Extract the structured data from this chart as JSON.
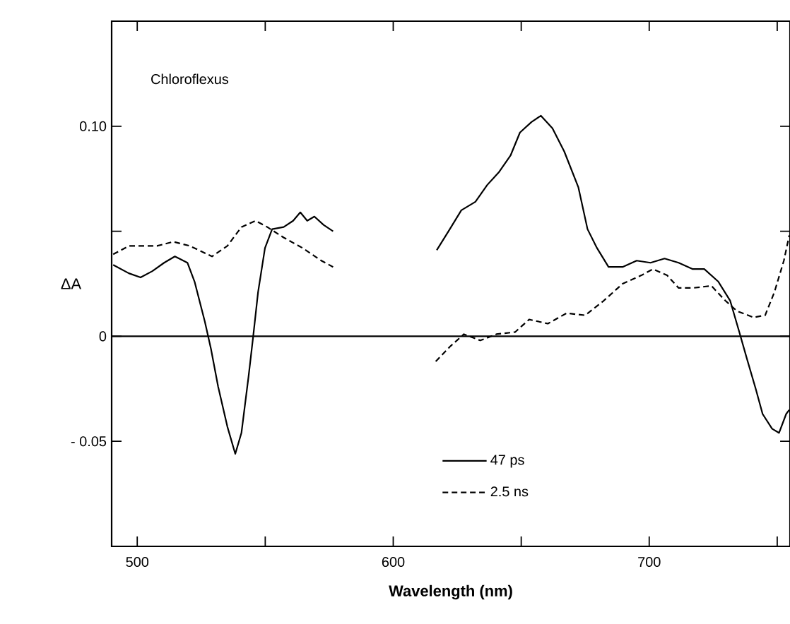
{
  "chart_data": {
    "type": "line",
    "xlabel": "Wavelength  (nm)",
    "ylabel": "ΔA",
    "annotations": [
      "Chloroflexus"
    ],
    "xlim": [
      490,
      755
    ],
    "ylim": [
      -0.1,
      0.15
    ],
    "xticks": [
      {
        "value": 500,
        "label": "500"
      },
      {
        "value": 550,
        "label": null
      },
      {
        "value": 600,
        "label": "600"
      },
      {
        "value": 650,
        "label": null
      },
      {
        "value": 700,
        "label": "700"
      },
      {
        "value": 750,
        "label": null
      }
    ],
    "yticks": [
      {
        "value": -0.05,
        "label": "- 0.05"
      },
      {
        "value": 0,
        "label": "0"
      },
      {
        "value": 0.05,
        "label": null
      },
      {
        "value": 0.1,
        "label": "0.10"
      }
    ],
    "ref_lines": [
      {
        "axis": "y",
        "value": 0,
        "label": null
      }
    ],
    "legend": "bottom right",
    "grid": false,
    "marker": "none",
    "series": [
      {
        "name": "47 ps",
        "color": "#000000",
        "line_style": "solid",
        "x": [
          490.6,
          496.7,
          501.3,
          505.9,
          510.5,
          514.7,
          519.6,
          522.4,
          526.4,
          528.8,
          531.6,
          535.2,
          538.3,
          540.7,
          543.5,
          545.3,
          547.2,
          549.9,
          552.7,
          557.2,
          560.9,
          563.7,
          566.4,
          569.2,
          572.8,
          576.5,
          596,
          617.0,
          622.1,
          626.6,
          632.1,
          636.7,
          641.2,
          645.8,
          649.5,
          654.0,
          657.7,
          662.2,
          666.8,
          672.3,
          675.9,
          679.6,
          684.1,
          689.6,
          695.1,
          700.5,
          706.0,
          711.5,
          717.0,
          721.5,
          727.0,
          731.6,
          735.2,
          738.0,
          741.6,
          744.3,
          748.0,
          750.7,
          753.5,
          754.7
        ],
        "values": [
          0.034,
          0.03,
          0.028,
          0.031,
          0.035,
          0.038,
          0.035,
          0.026,
          0.007,
          -0.006,
          -0.024,
          -0.043,
          -0.056,
          -0.046,
          -0.019,
          0.0,
          0.021,
          0.042,
          0.051,
          0.052,
          0.055,
          0.059,
          0.055,
          0.057,
          0.053,
          0.05,
          null,
          0.041,
          0.051,
          0.06,
          0.064,
          0.072,
          0.078,
          0.086,
          0.097,
          0.102,
          0.105,
          0.099,
          0.088,
          0.071,
          0.051,
          0.042,
          0.033,
          0.033,
          0.036,
          0.035,
          0.037,
          0.035,
          0.032,
          0.032,
          0.026,
          0.017,
          0.002,
          -0.01,
          -0.025,
          -0.037,
          -0.044,
          -0.046,
          -0.037,
          -0.035
        ]
      },
      {
        "name": "2.5 ns",
        "color": "#000000",
        "line_style": "dashed",
        "x": [
          490.6,
          496.7,
          502.2,
          507.7,
          514.1,
          520.6,
          529.2,
          535.2,
          540.7,
          546.2,
          550.8,
          557.2,
          564.6,
          571.9,
          576.5,
          596,
          616.6,
          622.1,
          627.6,
          634.0,
          640.3,
          647.6,
          653.1,
          660.4,
          667.7,
          675.0,
          682.3,
          689.6,
          696.9,
          701.5,
          707.0,
          711.5,
          717.0,
          724.3,
          729.7,
          734.3,
          740.7,
          745.3,
          748.9,
          752.6,
          754.7
        ],
        "values": [
          0.039,
          0.043,
          0.043,
          0.043,
          0.045,
          0.043,
          0.038,
          0.043,
          0.052,
          0.055,
          0.052,
          0.047,
          0.042,
          0.036,
          0.033,
          null,
          -0.012,
          -0.005,
          0.001,
          -0.002,
          0.001,
          0.002,
          0.008,
          0.006,
          0.011,
          0.01,
          0.017,
          0.025,
          0.029,
          0.032,
          0.029,
          0.023,
          0.023,
          0.024,
          0.017,
          0.012,
          0.009,
          0.01,
          0.021,
          0.036,
          0.048
        ]
      }
    ]
  }
}
